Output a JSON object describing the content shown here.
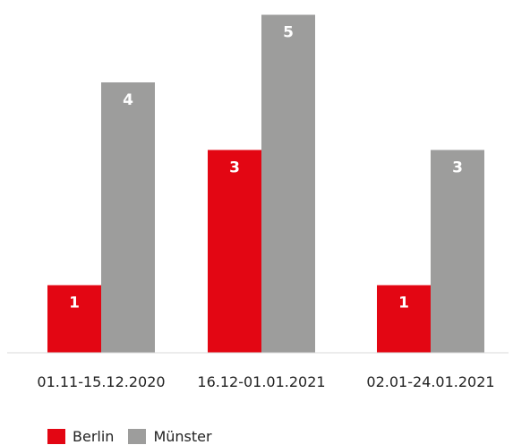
{
  "chart_data": {
    "type": "bar",
    "categories": [
      "01.11-15.12.2020",
      "16.12-01.01.2021",
      "02.01-24.01.2021"
    ],
    "series": [
      {
        "name": "Berlin",
        "values": [
          1,
          3,
          1
        ],
        "color": "#e30613"
      },
      {
        "name": "Münster",
        "values": [
          4,
          5,
          3
        ],
        "color": "#9d9d9c"
      }
    ],
    "title": "",
    "xlabel": "",
    "ylabel": "",
    "ylim": [
      0,
      5
    ],
    "grid": false,
    "data_labels": true,
    "legend": "bottom-left"
  }
}
